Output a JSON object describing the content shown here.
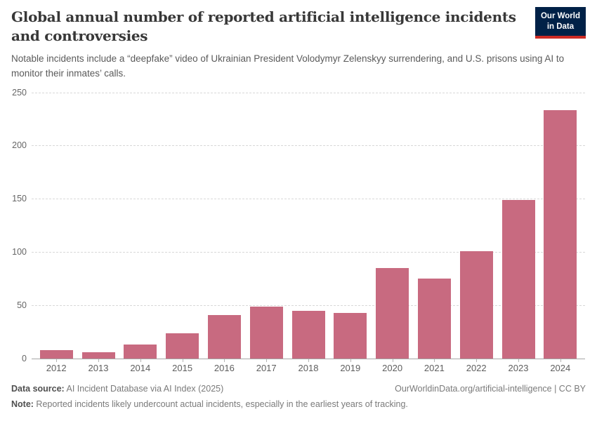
{
  "header": {
    "title": "Global annual number of reported artificial intelligence incidents and controversies",
    "subtitle": "Notable incidents include a “deepfake” video of Ukrainian President Volodymyr Zelenskyy surrendering, and U.S. prisons using AI to monitor their inmates’ calls.",
    "logo": {
      "line1": "Our World",
      "line2": "in Data",
      "bg_color": "#002147",
      "stripe_color": "#cc2b24"
    }
  },
  "chart_data": {
    "type": "bar",
    "title": "Global annual number of reported artificial intelligence incidents and controversies",
    "categories": [
      "2012",
      "2013",
      "2014",
      "2015",
      "2016",
      "2017",
      "2018",
      "2019",
      "2020",
      "2021",
      "2022",
      "2023",
      "2024"
    ],
    "values": [
      8,
      6,
      13,
      24,
      41,
      49,
      45,
      43,
      85,
      75,
      101,
      149,
      233
    ],
    "xlabel": "",
    "ylabel": "",
    "ylim": [
      0,
      250
    ],
    "yticks": [
      0,
      50,
      100,
      150,
      200,
      250
    ],
    "grid": true,
    "legend": "none",
    "bar_color": "#c86a80"
  },
  "footer": {
    "source_label": "Data source:",
    "source_text": " AI Incident Database via AI Index (2025)",
    "url_text": "OurWorldinData.org/artificial-intelligence | CC BY",
    "note_label": "Note:",
    "note_text": " Reported incidents likely undercount actual incidents, especially in the earliest years of tracking."
  }
}
